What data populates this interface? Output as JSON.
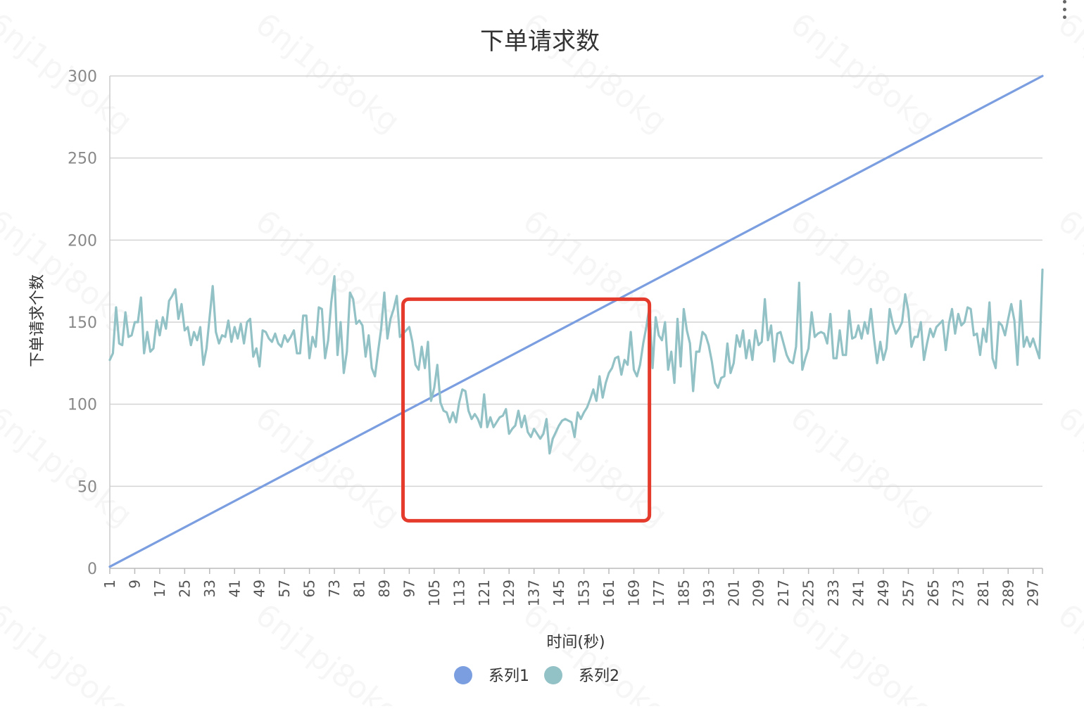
{
  "chart_data": {
    "type": "line",
    "title": "下单请求数",
    "xlabel": "时间(秒)",
    "ylabel": "下单请求个数",
    "ylim": [
      0,
      300
    ],
    "yticks": [
      "0",
      "50",
      "100",
      "150",
      "200",
      "250",
      "300"
    ],
    "xlim": [
      1,
      300
    ],
    "xticks": [
      "1",
      "9",
      "17",
      "25",
      "33",
      "41",
      "49",
      "57",
      "65",
      "73",
      "81",
      "89",
      "97",
      "105",
      "113",
      "121",
      "129",
      "137",
      "145",
      "153",
      "161",
      "169",
      "177",
      "185",
      "193",
      "201",
      "209",
      "217",
      "225",
      "233",
      "241",
      "249",
      "257",
      "265",
      "273",
      "281",
      "289",
      "297"
    ],
    "grid": true,
    "legend_position": "bottom-center",
    "series": [
      {
        "name": "系列1",
        "color": "#7b9ee0",
        "linear_from": [
          1,
          1
        ],
        "linear_to": [
          300,
          300
        ]
      },
      {
        "name": "系列2",
        "color": "#93c2c6",
        "points": [
          [
            1,
            127
          ],
          [
            2,
            131
          ],
          [
            3,
            159
          ],
          [
            4,
            137
          ],
          [
            5,
            136
          ],
          [
            6,
            156
          ],
          [
            7,
            141
          ],
          [
            8,
            142
          ],
          [
            9,
            150
          ],
          [
            10,
            150
          ],
          [
            11,
            165
          ],
          [
            12,
            131
          ],
          [
            13,
            144
          ],
          [
            14,
            132
          ],
          [
            15,
            134
          ],
          [
            16,
            151
          ],
          [
            17,
            142
          ],
          [
            18,
            153
          ],
          [
            19,
            146
          ],
          [
            20,
            163
          ],
          [
            21,
            166
          ],
          [
            22,
            170
          ],
          [
            23,
            152
          ],
          [
            24,
            161
          ],
          [
            25,
            145
          ],
          [
            26,
            147
          ],
          [
            27,
            136
          ],
          [
            28,
            144
          ],
          [
            29,
            139
          ],
          [
            30,
            147
          ],
          [
            31,
            124
          ],
          [
            32,
            134
          ],
          [
            33,
            153
          ],
          [
            34,
            172
          ],
          [
            35,
            144
          ],
          [
            36,
            137
          ],
          [
            37,
            142
          ],
          [
            38,
            141
          ],
          [
            39,
            151
          ],
          [
            40,
            138
          ],
          [
            41,
            147
          ],
          [
            42,
            140
          ],
          [
            43,
            149
          ],
          [
            44,
            137
          ],
          [
            45,
            150
          ],
          [
            46,
            152
          ],
          [
            47,
            129
          ],
          [
            48,
            134
          ],
          [
            49,
            123
          ],
          [
            50,
            145
          ],
          [
            51,
            144
          ],
          [
            52,
            140
          ],
          [
            53,
            138
          ],
          [
            54,
            143
          ],
          [
            55,
            137
          ],
          [
            56,
            135
          ],
          [
            57,
            142
          ],
          [
            58,
            138
          ],
          [
            59,
            141
          ],
          [
            60,
            145
          ],
          [
            61,
            131
          ],
          [
            62,
            131
          ],
          [
            63,
            154
          ],
          [
            64,
            154
          ],
          [
            65,
            128
          ],
          [
            66,
            141
          ],
          [
            67,
            135
          ],
          [
            68,
            159
          ],
          [
            69,
            158
          ],
          [
            70,
            128
          ],
          [
            71,
            139
          ],
          [
            72,
            162
          ],
          [
            73,
            178
          ],
          [
            74,
            130
          ],
          [
            75,
            150
          ],
          [
            76,
            119
          ],
          [
            77,
            132
          ],
          [
            78,
            168
          ],
          [
            79,
            164
          ],
          [
            80,
            149
          ],
          [
            81,
            151
          ],
          [
            82,
            148
          ],
          [
            83,
            129
          ],
          [
            84,
            142
          ],
          [
            85,
            122
          ],
          [
            86,
            117
          ],
          [
            87,
            132
          ],
          [
            88,
            146
          ],
          [
            89,
            168
          ],
          [
            90,
            140
          ],
          [
            91,
            152
          ],
          [
            92,
            158
          ],
          [
            93,
            166
          ],
          [
            94,
            141
          ],
          [
            95,
            143
          ],
          [
            96,
            145
          ],
          [
            97,
            147
          ],
          [
            98,
            138
          ],
          [
            99,
            124
          ],
          [
            100,
            121
          ],
          [
            101,
            135
          ],
          [
            102,
            122
          ],
          [
            103,
            138
          ],
          [
            104,
            102
          ],
          [
            105,
            110
          ],
          [
            106,
            124
          ],
          [
            107,
            101
          ],
          [
            108,
            96
          ],
          [
            109,
            95
          ],
          [
            110,
            89
          ],
          [
            111,
            95
          ],
          [
            112,
            89
          ],
          [
            113,
            101
          ],
          [
            114,
            109
          ],
          [
            115,
            108
          ],
          [
            116,
            96
          ],
          [
            117,
            91
          ],
          [
            118,
            94
          ],
          [
            119,
            91
          ],
          [
            120,
            86
          ],
          [
            121,
            106
          ],
          [
            122,
            86
          ],
          [
            123,
            92
          ],
          [
            124,
            86
          ],
          [
            125,
            89
          ],
          [
            126,
            92
          ],
          [
            127,
            93
          ],
          [
            128,
            97
          ],
          [
            129,
            82
          ],
          [
            130,
            85
          ],
          [
            131,
            87
          ],
          [
            132,
            96
          ],
          [
            133,
            86
          ],
          [
            134,
            93
          ],
          [
            135,
            83
          ],
          [
            136,
            80
          ],
          [
            137,
            85
          ],
          [
            138,
            82
          ],
          [
            139,
            79
          ],
          [
            140,
            82
          ],
          [
            141,
            91
          ],
          [
            142,
            70
          ],
          [
            143,
            79
          ],
          [
            144,
            83
          ],
          [
            145,
            87
          ],
          [
            146,
            90
          ],
          [
            147,
            91
          ],
          [
            148,
            90
          ],
          [
            149,
            89
          ],
          [
            150,
            80
          ],
          [
            151,
            95
          ],
          [
            152,
            91
          ],
          [
            153,
            95
          ],
          [
            154,
            98
          ],
          [
            155,
            103
          ],
          [
            156,
            109
          ],
          [
            157,
            102
          ],
          [
            158,
            117
          ],
          [
            159,
            104
          ],
          [
            160,
            113
          ],
          [
            161,
            119
          ],
          [
            162,
            122
          ],
          [
            163,
            128
          ],
          [
            164,
            129
          ],
          [
            165,
            118
          ],
          [
            166,
            127
          ],
          [
            167,
            124
          ],
          [
            168,
            144
          ],
          [
            169,
            121
          ],
          [
            170,
            117
          ],
          [
            171,
            124
          ],
          [
            172,
            137
          ],
          [
            173,
            147
          ],
          [
            174,
            159
          ],
          [
            175,
            122
          ],
          [
            176,
            153
          ],
          [
            177,
            142
          ],
          [
            178,
            139
          ],
          [
            179,
            150
          ],
          [
            180,
            121
          ],
          [
            181,
            132
          ],
          [
            182,
            113
          ],
          [
            183,
            152
          ],
          [
            184,
            123
          ],
          [
            185,
            158
          ],
          [
            186,
            145
          ],
          [
            187,
            137
          ],
          [
            188,
            108
          ],
          [
            189,
            132
          ],
          [
            190,
            132
          ],
          [
            191,
            144
          ],
          [
            192,
            142
          ],
          [
            193,
            136
          ],
          [
            194,
            126
          ],
          [
            195,
            113
          ],
          [
            196,
            110
          ],
          [
            197,
            116
          ],
          [
            198,
            117
          ],
          [
            199,
            137
          ],
          [
            200,
            119
          ],
          [
            201,
            125
          ],
          [
            202,
            142
          ],
          [
            203,
            135
          ],
          [
            204,
            145
          ],
          [
            205,
            128
          ],
          [
            206,
            139
          ],
          [
            207,
            127
          ],
          [
            208,
            145
          ],
          [
            209,
            136
          ],
          [
            210,
            138
          ],
          [
            211,
            164
          ],
          [
            212,
            139
          ],
          [
            213,
            148
          ],
          [
            214,
            126
          ],
          [
            215,
            143
          ],
          [
            216,
            144
          ],
          [
            217,
            137
          ],
          [
            218,
            130
          ],
          [
            219,
            126
          ],
          [
            220,
            125
          ],
          [
            221,
            135
          ],
          [
            222,
            174
          ],
          [
            223,
            121
          ],
          [
            224,
            128
          ],
          [
            225,
            134
          ],
          [
            226,
            156
          ],
          [
            227,
            141
          ],
          [
            228,
            143
          ],
          [
            229,
            144
          ],
          [
            230,
            143
          ],
          [
            231,
            137
          ],
          [
            232,
            155
          ],
          [
            233,
            128
          ],
          [
            234,
            128
          ],
          [
            235,
            145
          ],
          [
            236,
            130
          ],
          [
            237,
            130
          ],
          [
            238,
            157
          ],
          [
            239,
            140
          ],
          [
            240,
            141
          ],
          [
            241,
            148
          ],
          [
            242,
            140
          ],
          [
            243,
            150
          ],
          [
            244,
            143
          ],
          [
            245,
            158
          ],
          [
            246,
            140
          ],
          [
            247,
            125
          ],
          [
            248,
            138
          ],
          [
            249,
            127
          ],
          [
            250,
            134
          ],
          [
            251,
            158
          ],
          [
            252,
            149
          ],
          [
            253,
            143
          ],
          [
            254,
            146
          ],
          [
            255,
            150
          ],
          [
            256,
            167
          ],
          [
            257,
            157
          ],
          [
            258,
            135
          ],
          [
            259,
            141
          ],
          [
            260,
            141
          ],
          [
            261,
            150
          ],
          [
            262,
            127
          ],
          [
            263,
            137
          ],
          [
            264,
            146
          ],
          [
            265,
            141
          ],
          [
            266,
            147
          ],
          [
            267,
            149
          ],
          [
            268,
            151
          ],
          [
            269,
            133
          ],
          [
            270,
            149
          ],
          [
            271,
            158
          ],
          [
            272,
            143
          ],
          [
            273,
            155
          ],
          [
            274,
            148
          ],
          [
            275,
            150
          ],
          [
            276,
            159
          ],
          [
            277,
            158
          ],
          [
            278,
            142
          ],
          [
            279,
            143
          ],
          [
            280,
            130
          ],
          [
            281,
            146
          ],
          [
            282,
            138
          ],
          [
            283,
            162
          ],
          [
            284,
            128
          ],
          [
            285,
            122
          ],
          [
            286,
            150
          ],
          [
            287,
            148
          ],
          [
            288,
            142
          ],
          [
            289,
            152
          ],
          [
            290,
            161
          ],
          [
            291,
            151
          ],
          [
            292,
            124
          ],
          [
            293,
            163
          ],
          [
            294,
            135
          ],
          [
            295,
            141
          ],
          [
            296,
            135
          ],
          [
            297,
            140
          ],
          [
            298,
            134
          ],
          [
            299,
            128
          ],
          [
            300,
            182
          ]
        ]
      }
    ],
    "annotation": {
      "type": "rectangle",
      "color": "#e53b2c",
      "x_range": [
        95,
        174
      ],
      "y_range": [
        29,
        164
      ]
    },
    "watermark_text": "6nj1pj8okg"
  }
}
